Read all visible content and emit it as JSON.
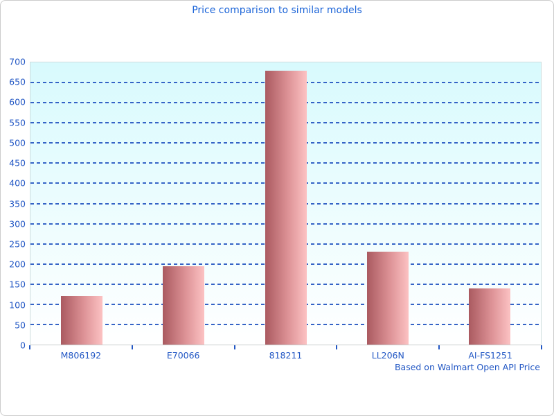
{
  "title": "Price comparison to similar models",
  "footer": "Based on Walmart Open API Price",
  "colors": {
    "title_blue": "#1b64d8",
    "label_blue": "#2257c4",
    "grid_blue": "#3463c6",
    "bar_gradient_dark": "#aa5a60",
    "bar_gradient_light": "#fcc2c3",
    "plot_bg_top": "#d8fafd",
    "plot_bg_bottom": "#ffffff",
    "frame_border": "#cccccc"
  },
  "chart_data": {
    "type": "bar",
    "title": "Price comparison to similar models",
    "categories": [
      "M806192",
      "E70066",
      "818211",
      "LL206N",
      "AI-FS1251"
    ],
    "values": [
      120,
      195,
      680,
      230,
      140
    ],
    "xlabel": "",
    "ylabel": "",
    "ylim": [
      0,
      700
    ],
    "ytick_step": 50,
    "yticks": [
      0,
      50,
      100,
      150,
      200,
      250,
      300,
      350,
      400,
      450,
      500,
      550,
      600,
      650,
      700
    ],
    "grid": "horizontal-dashed",
    "legend": "none",
    "annotation": "Based on Walmart Open API Price"
  }
}
